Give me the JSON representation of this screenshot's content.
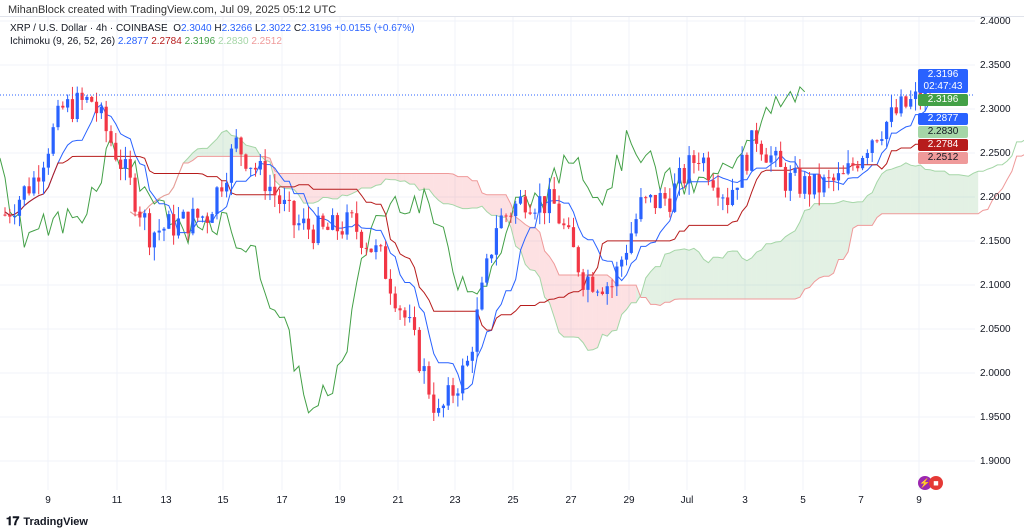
{
  "credit": "MihanBlock created with TradingView.com, Jul 09, 2025 05:12 UTC",
  "legend": {
    "symbol": "XRP / U.S. Dollar · 4h · COINBASE",
    "o_label": "O",
    "o": "2.3040",
    "h_label": "H",
    "h": "2.3266",
    "l_label": "L",
    "l": "2.3022",
    "c_label": "C",
    "c": "2.3196",
    "change": "+0.0155 (+0.67%)",
    "indicator": "Ichimoku (9, 26, 52, 26)",
    "values": [
      "2.2877",
      "2.2784",
      "2.3196",
      "2.2830",
      "2.2512"
    ]
  },
  "price_labels": {
    "last": "2.3196",
    "countdown": "02:47:43",
    "lagging": "2.3196",
    "tenkan": "2.2877",
    "span_a": "2.2830",
    "kijun": "2.2784",
    "span_b": "2.2512"
  },
  "colors": {
    "up": "#2962ff",
    "down": "#f23645",
    "tenkan": "#2962ff",
    "kijun": "#b71c1c",
    "lagging": "#43a047",
    "spanA": "#a5d6a7",
    "spanB": "#ef9a9a"
  },
  "footer": {
    "brand": "TradingView"
  },
  "chart_data": {
    "type": "candlestick",
    "title": "XRP / U.S. Dollar · 4h · COINBASE",
    "ylim": [
      1.88,
      2.41
    ],
    "y_ticks": [
      "2.4000",
      "2.3500",
      "2.3000",
      "2.2500",
      "2.2000",
      "2.1500",
      "2.1000",
      "2.0500",
      "2.0000",
      "1.9500",
      "1.9000"
    ],
    "x_ticks": [
      "9",
      "11",
      "13",
      "15",
      "17",
      "19",
      "21",
      "23",
      "25",
      "27",
      "29",
      "Jul",
      "3",
      "5",
      "7",
      "9"
    ],
    "key_closes": [
      2.18,
      2.22,
      2.3,
      2.31,
      2.24,
      2.16,
      2.17,
      2.18,
      2.26,
      2.22,
      2.17,
      2.16,
      2.17,
      2.13,
      2.05,
      1.95,
      2.01,
      2.17,
      2.2,
      2.19,
      2.11,
      2.1,
      2.19,
      2.2,
      2.25,
      2.2,
      2.27,
      2.22,
      2.21,
      2.22,
      2.27,
      2.3,
      2.3196
    ]
  }
}
